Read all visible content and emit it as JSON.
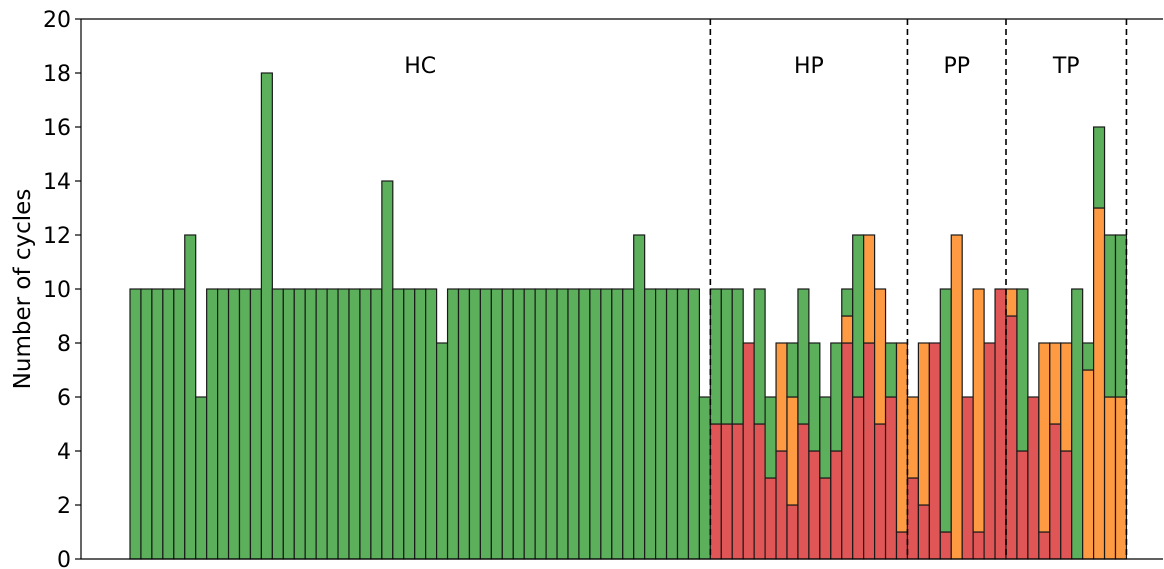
{
  "chart_data": {
    "type": "bar",
    "stacked": true,
    "ylabel": "Number of cycles",
    "xlabel": "",
    "ylim": [
      0,
      20
    ],
    "yticks": [
      0,
      2,
      4,
      6,
      8,
      10,
      12,
      14,
      16,
      18,
      20
    ],
    "grid": false,
    "colors": {
      "red": "#e05555",
      "orange": "#fd9a42",
      "green": "#5cb05c",
      "edge": "#1a1a1a"
    },
    "regions": [
      {
        "label": "HC",
        "count": 53
      },
      {
        "label": "HP",
        "count": 18
      },
      {
        "label": "PP",
        "count": 9
      },
      {
        "label": "TP",
        "count": 11
      }
    ],
    "bars": [
      [
        0,
        0,
        10
      ],
      [
        0,
        0,
        10
      ],
      [
        0,
        0,
        10
      ],
      [
        0,
        0,
        10
      ],
      [
        0,
        0,
        10
      ],
      [
        0,
        0,
        12
      ],
      [
        0,
        0,
        6
      ],
      [
        0,
        0,
        10
      ],
      [
        0,
        0,
        10
      ],
      [
        0,
        0,
        10
      ],
      [
        0,
        0,
        10
      ],
      [
        0,
        0,
        10
      ],
      [
        0,
        0,
        18
      ],
      [
        0,
        0,
        10
      ],
      [
        0,
        0,
        10
      ],
      [
        0,
        0,
        10
      ],
      [
        0,
        0,
        10
      ],
      [
        0,
        0,
        10
      ],
      [
        0,
        0,
        10
      ],
      [
        0,
        0,
        10
      ],
      [
        0,
        0,
        10
      ],
      [
        0,
        0,
        10
      ],
      [
        0,
        0,
        10
      ],
      [
        0,
        0,
        14
      ],
      [
        0,
        0,
        10
      ],
      [
        0,
        0,
        10
      ],
      [
        0,
        0,
        10
      ],
      [
        0,
        0,
        10
      ],
      [
        0,
        0,
        8
      ],
      [
        0,
        0,
        10
      ],
      [
        0,
        0,
        10
      ],
      [
        0,
        0,
        10
      ],
      [
        0,
        0,
        10
      ],
      [
        0,
        0,
        10
      ],
      [
        0,
        0,
        10
      ],
      [
        0,
        0,
        10
      ],
      [
        0,
        0,
        10
      ],
      [
        0,
        0,
        10
      ],
      [
        0,
        0,
        10
      ],
      [
        0,
        0,
        10
      ],
      [
        0,
        0,
        10
      ],
      [
        0,
        0,
        10
      ],
      [
        0,
        0,
        10
      ],
      [
        0,
        0,
        10
      ],
      [
        0,
        0,
        10
      ],
      [
        0,
        0,
        10
      ],
      [
        0,
        0,
        12
      ],
      [
        0,
        0,
        10
      ],
      [
        0,
        0,
        10
      ],
      [
        0,
        0,
        10
      ],
      [
        0,
        0,
        10
      ],
      [
        0,
        0,
        10
      ],
      [
        0,
        0,
        6
      ],
      [
        5,
        0,
        5
      ],
      [
        5,
        0,
        5
      ],
      [
        5,
        0,
        5
      ],
      [
        8,
        0,
        0
      ],
      [
        5,
        0,
        5
      ],
      [
        3,
        0,
        3
      ],
      [
        4,
        4,
        0
      ],
      [
        2,
        4,
        2
      ],
      [
        5,
        0,
        5
      ],
      [
        4,
        0,
        4
      ],
      [
        3,
        0,
        3
      ],
      [
        4,
        0,
        4
      ],
      [
        8,
        1,
        1
      ],
      [
        6,
        0,
        6
      ],
      [
        8,
        4,
        0
      ],
      [
        5,
        5,
        0
      ],
      [
        6,
        0,
        2
      ],
      [
        1,
        7,
        0
      ],
      [
        3,
        3,
        0
      ],
      [
        2,
        6,
        0
      ],
      [
        8,
        0,
        0
      ],
      [
        1,
        0,
        9
      ],
      [
        0,
        12,
        0
      ],
      [
        6,
        0,
        0
      ],
      [
        1,
        9,
        0
      ],
      [
        8,
        0,
        0
      ],
      [
        10,
        0,
        0
      ],
      [
        9,
        1,
        0
      ],
      [
        4,
        0,
        6
      ],
      [
        6,
        0,
        0
      ],
      [
        1,
        7,
        0
      ],
      [
        5,
        3,
        0
      ],
      [
        4,
        4,
        0
      ],
      [
        0,
        0,
        10
      ],
      [
        0,
        7,
        1
      ],
      [
        0,
        13,
        3
      ],
      [
        0,
        6,
        6
      ],
      [
        0,
        6,
        6
      ]
    ]
  }
}
